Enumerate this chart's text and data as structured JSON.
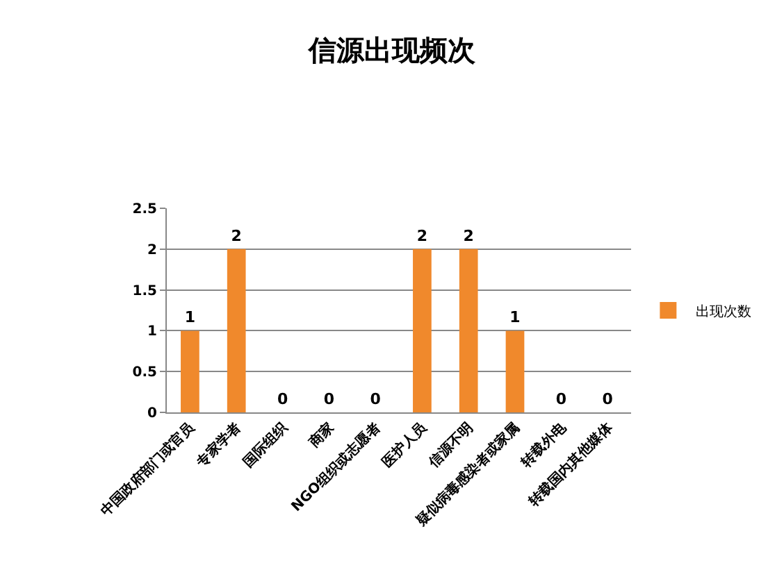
{
  "chart_data": {
    "type": "bar",
    "title": "信源出现频次",
    "categories": [
      "中国政府部门或官员",
      "专家学者",
      "国际组织",
      "商家",
      "NGO组织或志愿者",
      "医护人员",
      "信源不明",
      "疑似病毒感染者或家属",
      "转载外电",
      "转载国内其他媒体"
    ],
    "series": [
      {
        "name": "出现次数",
        "color": "#f0892c",
        "values": [
          1,
          2,
          0,
          0,
          0,
          2,
          2,
          1,
          0,
          0
        ]
      }
    ],
    "ylim": [
      0,
      2.5
    ],
    "yticks": [
      0,
      0.5,
      1,
      1.5,
      2,
      2.5
    ],
    "grid": "y",
    "legend": "right",
    "data_labels": true
  }
}
